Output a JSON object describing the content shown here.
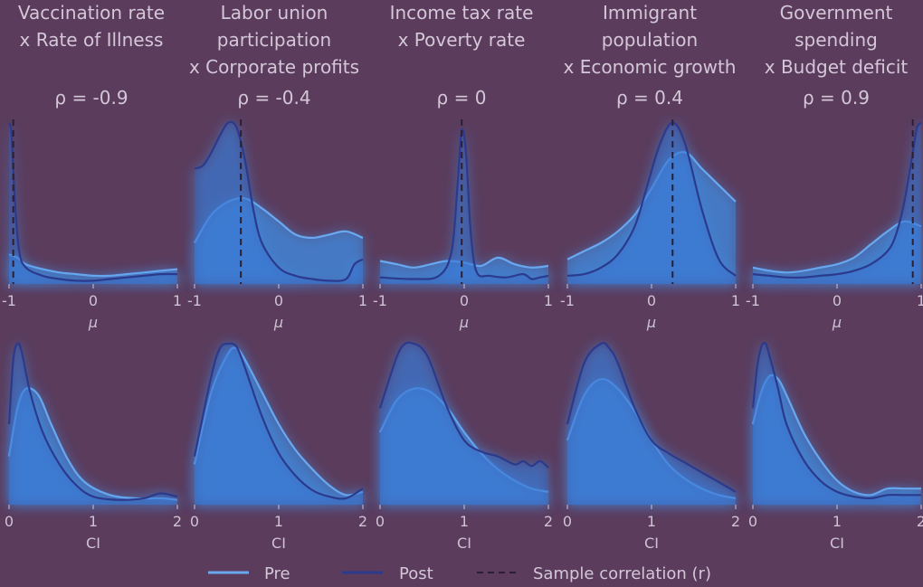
{
  "chart_data": {
    "type": "area",
    "legend": {
      "placement": "bottom-center",
      "items": [
        {
          "label": "Pre",
          "style": "solid",
          "color": "#6aa8f0"
        },
        {
          "label": "Post",
          "style": "solid",
          "color": "#2b3a8c"
        },
        {
          "label": "Sample correlation (r)",
          "style": "dashed",
          "color": "#2b1f36"
        }
      ]
    },
    "colors": {
      "background": "#5b3c5d",
      "pre": "#6aa8f0",
      "post": "#2b3a8c",
      "fill": "#3f8fe6",
      "dash": "#2b1f36",
      "text": "#d4c7d7"
    },
    "panels": [
      {
        "title": [
          "Vaccination rate",
          "x Rate of Illness"
        ],
        "rho_label": "ρ = -0.9",
        "sample_r": -0.95,
        "mu": {
          "xlabel": "μ",
          "xlim": [
            -1,
            1
          ],
          "xticks": [
            "-1",
            "0",
            "1"
          ],
          "pre": {
            "x": [
              -1,
              -0.9,
              -0.8,
              -0.6,
              -0.4,
              -0.2,
              0,
              0.2,
              0.4,
              0.6,
              0.8,
              1
            ],
            "y": [
              0.18,
              0.16,
              0.12,
              0.09,
              0.07,
              0.06,
              0.05,
              0.05,
              0.06,
              0.07,
              0.08,
              0.09
            ]
          },
          "post": {
            "x": [
              -1,
              -0.97,
              -0.93,
              -0.88,
              -0.8,
              -0.6,
              -0.4,
              -0.2,
              0,
              0.2,
              0.4,
              0.6,
              0.8,
              1
            ],
            "y": [
              0.98,
              0.9,
              0.5,
              0.2,
              0.1,
              0.05,
              0.03,
              0.02,
              0.02,
              0.03,
              0.04,
              0.05,
              0.06,
              0.06
            ]
          }
        },
        "ci": {
          "xlabel": "CI",
          "xlim": [
            0,
            2
          ],
          "xticks": [
            "0",
            "1",
            "2"
          ],
          "pre": {
            "x": [
              0,
              0.1,
              0.2,
              0.35,
              0.5,
              0.7,
              0.9,
              1.2,
              1.5,
              1.8,
              2
            ],
            "y": [
              0.3,
              0.6,
              0.72,
              0.68,
              0.5,
              0.28,
              0.14,
              0.06,
              0.04,
              0.04,
              0.03
            ]
          },
          "post": {
            "x": [
              0,
              0.05,
              0.1,
              0.15,
              0.25,
              0.4,
              0.6,
              0.8,
              1,
              1.3,
              1.6,
              1.8,
              2
            ],
            "y": [
              0.5,
              0.9,
              1.0,
              0.95,
              0.7,
              0.45,
              0.25,
              0.12,
              0.05,
              0.03,
              0.04,
              0.07,
              0.05
            ]
          }
        }
      },
      {
        "title": [
          "Labor union",
          "participation",
          "x Corporate profits"
        ],
        "rho_label": "ρ = -0.4",
        "sample_r": -0.45,
        "mu": {
          "xlabel": "μ",
          "xlim": [
            -1,
            1
          ],
          "xticks": [
            "-1",
            "0",
            "1"
          ],
          "pre": {
            "x": [
              -1,
              -0.8,
              -0.6,
              -0.4,
              -0.2,
              0,
              0.2,
              0.4,
              0.6,
              0.8,
              1
            ],
            "y": [
              0.25,
              0.42,
              0.5,
              0.52,
              0.46,
              0.38,
              0.3,
              0.28,
              0.3,
              0.32,
              0.28
            ]
          },
          "post": {
            "x": [
              -1,
              -0.9,
              -0.8,
              -0.7,
              -0.6,
              -0.5,
              -0.4,
              -0.3,
              -0.2,
              0,
              0.2,
              0.4,
              0.6,
              0.8,
              0.9,
              1
            ],
            "y": [
              0.7,
              0.72,
              0.8,
              0.9,
              0.98,
              0.95,
              0.75,
              0.45,
              0.25,
              0.1,
              0.05,
              0.03,
              0.02,
              0.03,
              0.12,
              0.15
            ]
          }
        },
        "ci": {
          "xlabel": "CI",
          "xlim": [
            0,
            2
          ],
          "xticks": [
            "0",
            "1",
            "2"
          ],
          "pre": {
            "x": [
              0,
              0.2,
              0.4,
              0.5,
              0.6,
              0.8,
              1,
              1.2,
              1.4,
              1.6,
              1.8,
              2
            ],
            "y": [
              0.25,
              0.7,
              0.94,
              0.97,
              0.9,
              0.7,
              0.5,
              0.34,
              0.22,
              0.12,
              0.06,
              0.08
            ]
          },
          "post": {
            "x": [
              0,
              0.2,
              0.3,
              0.4,
              0.5,
              0.6,
              0.8,
              1,
              1.2,
              1.4,
              1.6,
              1.8,
              2
            ],
            "y": [
              0.3,
              0.8,
              0.97,
              1.0,
              0.98,
              0.85,
              0.55,
              0.32,
              0.18,
              0.09,
              0.05,
              0.04,
              0.1
            ]
          }
        }
      },
      {
        "title": [
          "Income tax rate",
          "x Poverty rate"
        ],
        "rho_label": "ρ = 0",
        "sample_r": -0.03,
        "mu": {
          "xlabel": "μ",
          "xlim": [
            -1,
            1
          ],
          "xticks": [
            "-1",
            "0",
            "1"
          ],
          "pre": {
            "x": [
              -1,
              -0.8,
              -0.6,
              -0.4,
              -0.2,
              0,
              0.2,
              0.4,
              0.6,
              0.8,
              1
            ],
            "y": [
              0.14,
              0.12,
              0.1,
              0.12,
              0.14,
              0.13,
              0.11,
              0.16,
              0.12,
              0.1,
              0.11
            ]
          },
          "post": {
            "x": [
              -1,
              -0.6,
              -0.3,
              -0.15,
              -0.08,
              -0.03,
              0.02,
              0.08,
              0.15,
              0.3,
              0.5,
              0.7,
              0.8,
              0.9,
              1
            ],
            "y": [
              0.04,
              0.03,
              0.05,
              0.2,
              0.6,
              0.93,
              0.8,
              0.3,
              0.07,
              0.05,
              0.04,
              0.06,
              0.03,
              0.04,
              0.05
            ]
          }
        },
        "ci": {
          "xlabel": "CI",
          "xlim": [
            0,
            2
          ],
          "xticks": [
            "0",
            "1",
            "2"
          ],
          "pre": {
            "x": [
              0,
              0.2,
              0.4,
              0.6,
              0.8,
              1,
              1.2,
              1.4,
              1.6,
              1.8,
              2
            ],
            "y": [
              0.45,
              0.65,
              0.72,
              0.7,
              0.6,
              0.45,
              0.32,
              0.22,
              0.15,
              0.1,
              0.08
            ]
          },
          "post": {
            "x": [
              0,
              0.2,
              0.3,
              0.4,
              0.5,
              0.6,
              0.8,
              1,
              1.2,
              1.4,
              1.6,
              1.7,
              1.8,
              1.9,
              2
            ],
            "y": [
              0.6,
              0.92,
              1.0,
              1.0,
              0.97,
              0.88,
              0.6,
              0.4,
              0.33,
              0.3,
              0.25,
              0.27,
              0.24,
              0.27,
              0.23
            ]
          }
        }
      },
      {
        "title": [
          "Immigrant",
          "population",
          "x Economic growth"
        ],
        "rho_label": "ρ = 0.4",
        "sample_r": 0.25,
        "mu": {
          "xlabel": "μ",
          "xlim": [
            -1,
            1
          ],
          "xticks": [
            "-1",
            "0",
            "1"
          ],
          "pre": {
            "x": [
              -1,
              -0.8,
              -0.6,
              -0.4,
              -0.2,
              0,
              0.2,
              0.4,
              0.6,
              0.8,
              1
            ],
            "y": [
              0.15,
              0.2,
              0.25,
              0.32,
              0.42,
              0.58,
              0.75,
              0.8,
              0.7,
              0.6,
              0.5
            ]
          },
          "post": {
            "x": [
              -1,
              -0.8,
              -0.6,
              -0.4,
              -0.2,
              -0.05,
              0.1,
              0.25,
              0.4,
              0.6,
              0.8,
              1
            ],
            "y": [
              0.05,
              0.06,
              0.1,
              0.18,
              0.35,
              0.6,
              0.85,
              0.98,
              0.85,
              0.45,
              0.15,
              0.05
            ]
          }
        },
        "ci": {
          "xlabel": "CI",
          "xlim": [
            0,
            2
          ],
          "xticks": [
            "0",
            "1",
            "2"
          ],
          "pre": {
            "x": [
              0,
              0.2,
              0.4,
              0.6,
              0.8,
              1,
              1.2,
              1.4,
              1.6,
              1.8,
              2
            ],
            "y": [
              0.4,
              0.68,
              0.78,
              0.72,
              0.58,
              0.4,
              0.25,
              0.16,
              0.1,
              0.06,
              0.04
            ]
          },
          "post": {
            "x": [
              0,
              0.2,
              0.4,
              0.5,
              0.6,
              0.8,
              1,
              1.2,
              1.4,
              1.6,
              1.8,
              2
            ],
            "y": [
              0.5,
              0.88,
              1.0,
              0.97,
              0.88,
              0.6,
              0.4,
              0.32,
              0.26,
              0.2,
              0.14,
              0.08
            ]
          }
        }
      },
      {
        "title": [
          "Government",
          "spending",
          "x Budget deficit"
        ],
        "rho_label": "ρ = 0.9",
        "sample_r": 0.9,
        "mu": {
          "xlabel": "μ",
          "xlim": [
            -1,
            1
          ],
          "xticks": [
            "-1",
            "0",
            "1"
          ],
          "pre": {
            "x": [
              -1,
              -0.8,
              -0.6,
              -0.4,
              -0.2,
              0,
              0.2,
              0.4,
              0.6,
              0.8,
              1
            ],
            "y": [
              0.1,
              0.08,
              0.07,
              0.08,
              0.1,
              0.12,
              0.16,
              0.24,
              0.32,
              0.38,
              0.35
            ]
          },
          "post": {
            "x": [
              -1,
              -0.8,
              -0.6,
              -0.4,
              -0.2,
              0,
              0.2,
              0.4,
              0.6,
              0.7,
              0.8,
              0.9,
              0.95,
              1
            ],
            "y": [
              0.06,
              0.05,
              0.04,
              0.04,
              0.05,
              0.06,
              0.08,
              0.12,
              0.2,
              0.3,
              0.5,
              0.8,
              0.95,
              0.98
            ]
          }
        },
        "ci": {
          "xlabel": "CI",
          "xlim": [
            0,
            2
          ],
          "xticks": [
            "0",
            "1",
            "2"
          ],
          "pre": {
            "x": [
              0,
              0.1,
              0.2,
              0.3,
              0.4,
              0.6,
              0.8,
              1,
              1.2,
              1.4,
              1.6,
              1.8,
              2
            ],
            "y": [
              0.5,
              0.7,
              0.8,
              0.78,
              0.68,
              0.45,
              0.28,
              0.15,
              0.08,
              0.06,
              0.1,
              0.1,
              0.1
            ]
          },
          "post": {
            "x": [
              0,
              0.05,
              0.1,
              0.15,
              0.2,
              0.3,
              0.4,
              0.6,
              0.8,
              1,
              1.2,
              1.4,
              1.6,
              1.8,
              2
            ],
            "y": [
              0.6,
              0.85,
              0.98,
              1.0,
              0.92,
              0.72,
              0.5,
              0.28,
              0.15,
              0.08,
              0.05,
              0.04,
              0.06,
              0.06,
              0.06
            ]
          }
        }
      }
    ]
  }
}
